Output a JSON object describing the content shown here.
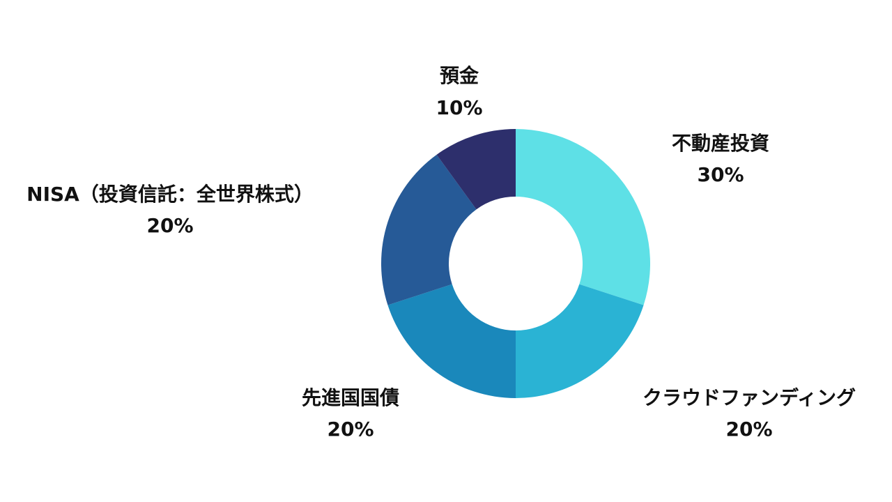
{
  "chart_data": {
    "type": "pie",
    "donut": true,
    "title": "",
    "start_angle_deg": 0,
    "direction": "clockwise",
    "slices": [
      {
        "label": "不動産投資",
        "value": 30,
        "value_label": "30%",
        "color": "#5ee0e6"
      },
      {
        "label": "クラウドファンディング",
        "value": 20,
        "value_label": "20%",
        "color": "#2ab3d4"
      },
      {
        "label": "先進国国債",
        "value": 20,
        "value_label": "20%",
        "color": "#1a88bb"
      },
      {
        "label": "NISA（投資信託：全世界株式）",
        "value": 20,
        "value_label": "20%",
        "color": "#265a97"
      },
      {
        "label": "預金",
        "value": 10,
        "value_label": "10%",
        "color": "#2d2f6c"
      }
    ],
    "legend": "none"
  }
}
